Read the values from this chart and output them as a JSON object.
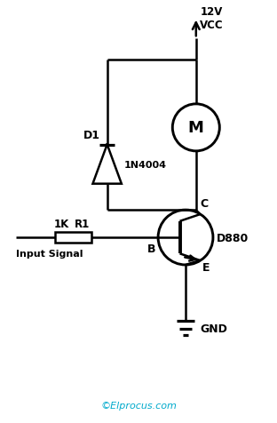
{
  "bg_color": "#ffffff",
  "line_color": "#000000",
  "text_color": "#000000",
  "cyan_color": "#00AACC",
  "figsize": [
    3.12,
    4.77
  ],
  "dpi": 100,
  "copyright": "©Elprocus.com",
  "vcc_label": "12V\nVCC",
  "gnd_label": "GND",
  "motor_label": "M",
  "transistor_label": "D880",
  "diode_label": "D1",
  "diode_part": "1N4004",
  "resistor_label": "1K",
  "resistor_name": "R1",
  "input_label": "Input Signal",
  "collector_label": "C",
  "base_label": "B",
  "emitter_label": "E",
  "xlim": [
    0,
    10
  ],
  "ylim": [
    0,
    16
  ]
}
